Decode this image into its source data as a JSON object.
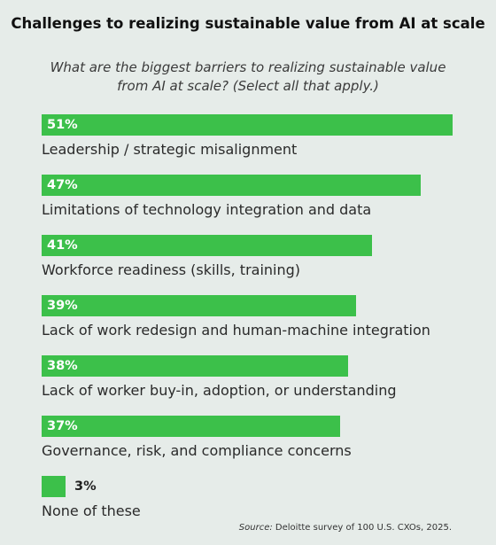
{
  "chart_data": {
    "type": "bar",
    "orientation": "horizontal",
    "title": "Challenges to realizing sustainable value from AI at scale",
    "subtitle": "What are the biggest barriers to realizing sustainable value from AI at scale? (Select all that apply.)",
    "categories": [
      "Leadership / strategic misalignment",
      "Limitations of technology integration and data",
      "Workforce readiness (skills, training)",
      "Lack of work redesign and human-machine integration",
      "Lack of worker buy-in, adoption, or understanding",
      "Governance, risk, and compliance concerns",
      "None of these"
    ],
    "values": [
      51,
      47,
      41,
      39,
      38,
      37,
      3
    ],
    "value_labels": [
      "51%",
      "47%",
      "41%",
      "39%",
      "38%",
      "37%",
      "3%"
    ],
    "unit": "%",
    "bar_color": "#3cc04a",
    "grid": false,
    "legend": "none"
  },
  "source": {
    "label": "Source:",
    "text": "Deloitte survey of 100 U.S. CXOs, 2025."
  }
}
